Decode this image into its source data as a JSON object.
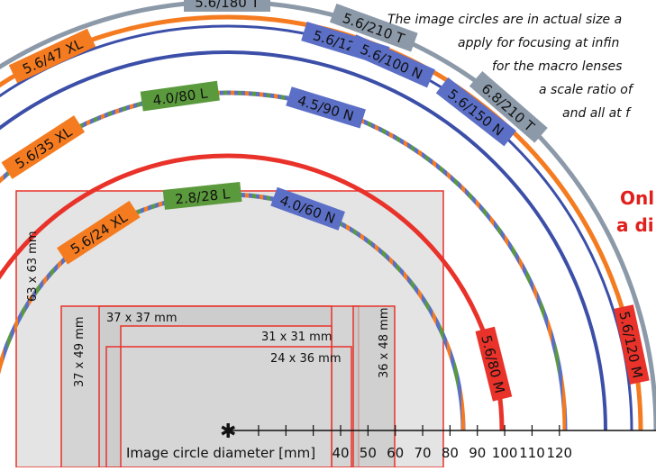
{
  "notes": [
    "The image circles are in actual size a",
    "apply for focusing at infin",
    "for the macro lenses",
    "a scale ratio of",
    "and all at f"
  ],
  "headline": [
    "Onl",
    "a di"
  ],
  "lenses": [
    {
      "label": "5.6/180 T",
      "color": "#8c99a8"
    },
    {
      "label": "5.6/210 T",
      "color": "#8c99a8"
    },
    {
      "label": "5.6/47 XL",
      "color": "#f47b20"
    },
    {
      "label": "5.6/120 N",
      "color": "#5b6fc6"
    },
    {
      "label": "5.6/100 N",
      "color": "#5b6fc6"
    },
    {
      "label": "4.0/80 L",
      "color": "#5a9a3c"
    },
    {
      "label": "4.5/90 N",
      "color": "#5b6fc6"
    },
    {
      "label": "5.6/35 XL",
      "color": "#f47b20"
    },
    {
      "label": "5.6/150 N",
      "color": "#5b6fc6"
    },
    {
      "label": "6.8/210 T",
      "color": "#8c99a8"
    },
    {
      "label": "2.8/28 L",
      "color": "#5a9a3c"
    },
    {
      "label": "4.0/60 N",
      "color": "#5b6fc6"
    },
    {
      "label": "5.6/24 XL",
      "color": "#f47b20"
    },
    {
      "label": "5.6/80 M",
      "color": "#e8322a"
    },
    {
      "label": "5.6/120 M",
      "color": "#e8322a"
    }
  ],
  "formats": [
    "63 x 63 mm",
    "37 x 49 mm",
    "37 x 37 mm",
    "31 x 31 mm",
    "24 x 36 mm",
    "36 x 48 mm"
  ],
  "axis": {
    "label": "Image circle diameter [mm]",
    "ticks": [
      "40",
      "50",
      "60",
      "70",
      "80",
      "90",
      "100",
      "110",
      "120"
    ]
  },
  "colors": {
    "gray": "#8c99a8",
    "orange": "#f47b20",
    "blue": "#3c4fa8",
    "green": "#5a9a3c",
    "red": "#e8322a"
  }
}
